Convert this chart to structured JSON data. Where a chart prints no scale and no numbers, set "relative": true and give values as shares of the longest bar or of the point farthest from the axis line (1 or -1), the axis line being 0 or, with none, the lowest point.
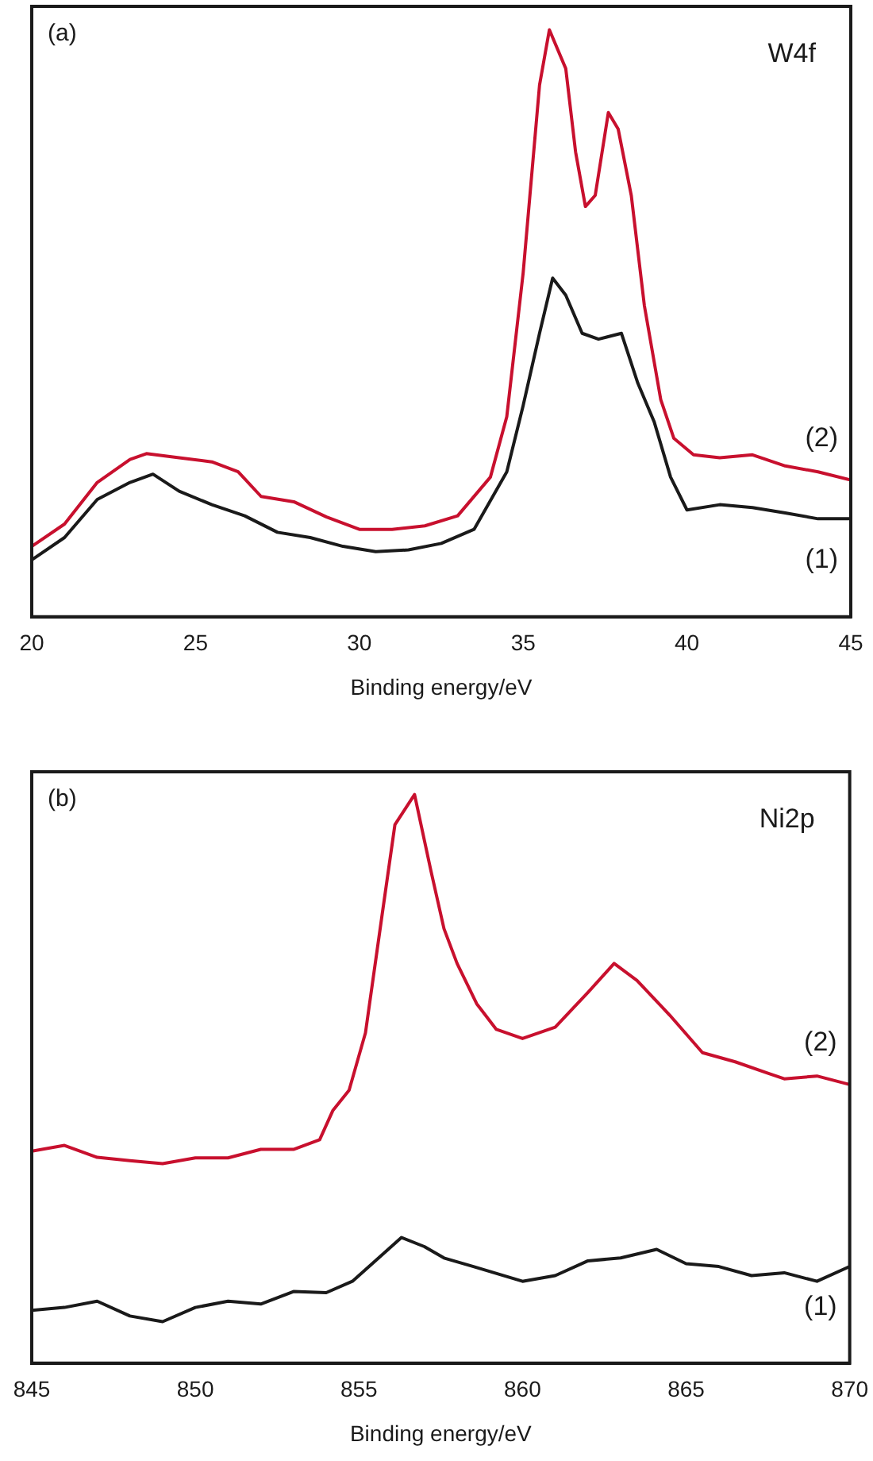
{
  "chart_data": [
    {
      "type": "line",
      "relative": true,
      "xlabel": "Binding energy/eV",
      "xlim": [
        20,
        45
      ],
      "xticks": [
        20,
        25,
        30,
        35,
        40,
        45
      ],
      "legend": false,
      "grid": false,
      "marker": "none",
      "line_style": "solid",
      "annotations": [
        "(a)",
        "W4f"
      ],
      "x": [
        20,
        21,
        22,
        23,
        23.5,
        24.5,
        25.5,
        26.3,
        27,
        28,
        29,
        30,
        31,
        32,
        33,
        34,
        34.5,
        35,
        35.5,
        35.8,
        36.3,
        36.6,
        36.9,
        37.2,
        37.6,
        37.9,
        38.3,
        38.7,
        39.2,
        39.6,
        40.2,
        41,
        42,
        43,
        44,
        45
      ],
      "series": [
        {
          "name": "(2)",
          "color": "#c8102e",
          "values": [
            0.12,
            0.158,
            0.229,
            0.268,
            0.278,
            0.271,
            0.264,
            0.247,
            0.205,
            0.196,
            0.17,
            0.149,
            0.149,
            0.155,
            0.172,
            0.238,
            0.341,
            0.586,
            0.906,
            1.0,
            0.934,
            0.792,
            0.699,
            0.718,
            0.859,
            0.831,
            0.718,
            0.53,
            0.37,
            0.304,
            0.276,
            0.271,
            0.276,
            0.257,
            0.247,
            0.233
          ]
        },
        {
          "name": "(1)",
          "color": "#1a1a1a",
          "x": [
            20,
            21,
            22,
            23,
            23.7,
            24.5,
            25.5,
            26.5,
            27.5,
            28.5,
            29.5,
            30.5,
            31.5,
            32.5,
            33.5,
            34.5,
            35,
            35.5,
            35.9,
            36.3,
            36.8,
            37.3,
            38,
            38.5,
            39,
            39.5,
            40,
            41,
            42,
            43,
            44,
            45
          ],
          "values": [
            0.097,
            0.135,
            0.2,
            0.229,
            0.243,
            0.214,
            0.191,
            0.172,
            0.144,
            0.135,
            0.12,
            0.111,
            0.114,
            0.125,
            0.149,
            0.247,
            0.36,
            0.483,
            0.577,
            0.548,
            0.483,
            0.473,
            0.483,
            0.398,
            0.332,
            0.238,
            0.182,
            0.191,
            0.186,
            0.177,
            0.167,
            0.167
          ]
        }
      ]
    },
    {
      "type": "line",
      "relative": true,
      "xlabel": "Binding energy/eV",
      "xlim": [
        845,
        870
      ],
      "xticks": [
        845,
        850,
        855,
        860,
        865,
        870
      ],
      "legend": false,
      "grid": false,
      "marker": "none",
      "line_style": "solid",
      "annotations": [
        "(b)",
        "Ni2p"
      ],
      "x": [
        845,
        846,
        847,
        848,
        849,
        850,
        851,
        852,
        853,
        853.8,
        854.2,
        854.7,
        855.2,
        855.7,
        856.1,
        856.7,
        857.2,
        857.6,
        858,
        858.6,
        859.2,
        860,
        861,
        862,
        862.8,
        863.5,
        864.5,
        865.5,
        866.5,
        867.5,
        868,
        869,
        870
      ],
      "series": [
        {
          "name": "(2)",
          "color": "#c8102e",
          "values": [
            0.373,
            0.383,
            0.362,
            0.356,
            0.351,
            0.361,
            0.361,
            0.376,
            0.376,
            0.393,
            0.444,
            0.48,
            0.581,
            0.785,
            0.947,
            1.0,
            0.866,
            0.764,
            0.703,
            0.632,
            0.587,
            0.571,
            0.591,
            0.652,
            0.703,
            0.673,
            0.612,
            0.546,
            0.53,
            0.51,
            0.5,
            0.505,
            0.49
          ]
        },
        {
          "name": "(1)",
          "color": "#1a1a1a",
          "x": [
            845,
            846,
            847,
            848,
            849,
            850,
            851,
            852,
            853,
            854,
            854.8,
            855.5,
            856.3,
            857,
            857.6,
            858.5,
            860,
            861,
            862,
            863,
            864.1,
            865,
            866,
            867,
            868,
            869,
            870
          ],
          "values": [
            0.093,
            0.098,
            0.109,
            0.083,
            0.073,
            0.098,
            0.109,
            0.104,
            0.126,
            0.124,
            0.144,
            0.18,
            0.221,
            0.205,
            0.185,
            0.17,
            0.144,
            0.154,
            0.18,
            0.185,
            0.2,
            0.175,
            0.17,
            0.154,
            0.159,
            0.144,
            0.17
          ]
        }
      ]
    }
  ]
}
